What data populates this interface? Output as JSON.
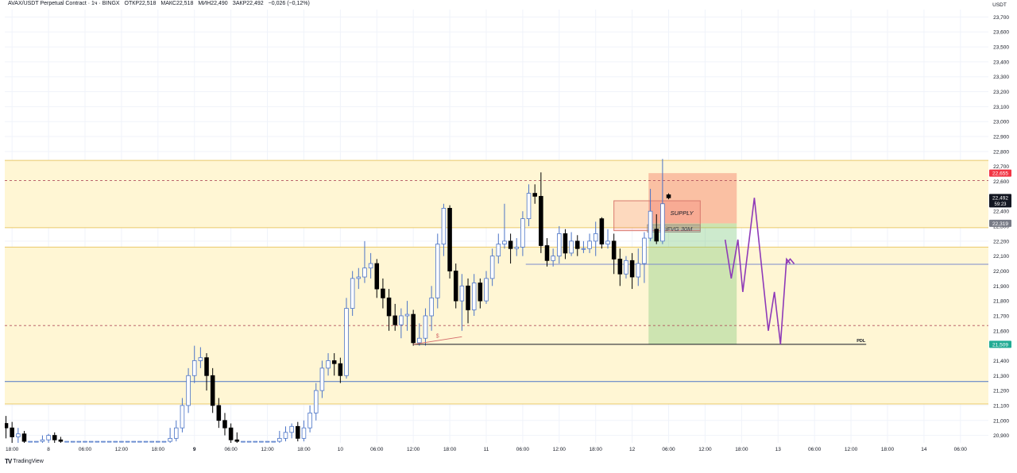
{
  "header": {
    "symbol": "AVAX/USDT Perpetual Contract · 1ч · BINGX",
    "open_label": "ОТКР",
    "open": "22,518",
    "high_label": "МАКС",
    "high": "22,518",
    "low_label": "МИН",
    "low": "22,490",
    "close_label": "ЗАКР",
    "close": "22,492",
    "change": "−0,026 (−0,12%)"
  },
  "footer": {
    "brand": "TradingView",
    "logo_icon": "tradingview-logo-icon"
  },
  "chart_data": {
    "type": "candlestick",
    "currency": "USDT",
    "ylim": [
      20.85,
      23.75
    ],
    "y_ticks": [
      "23,700",
      "23,600",
      "23,500",
      "23,400",
      "23,300",
      "23,200",
      "23,100",
      "23,000",
      "22,900",
      "22,800",
      "22,700",
      "22,600",
      "22,500",
      "22,400",
      "22,300",
      "22,200",
      "22,100",
      "22,000",
      "21,900",
      "21,800",
      "21,700",
      "21,600",
      "21,500",
      "21,400",
      "21,300",
      "21,200",
      "21,100",
      "21,000",
      "20,900"
    ],
    "y_tick_values": [
      23.7,
      23.6,
      23.5,
      23.4,
      23.3,
      23.2,
      23.1,
      23.0,
      22.9,
      22.8,
      22.7,
      22.6,
      22.5,
      22.4,
      22.3,
      22.2,
      22.1,
      22.0,
      21.9,
      21.8,
      21.7,
      21.6,
      21.5,
      21.4,
      21.3,
      21.2,
      21.1,
      21.0,
      20.9
    ],
    "x_tick_labels": [
      "18:00",
      "8",
      "06:00",
      "12:00",
      "18:00",
      "9",
      "06:00",
      "12:00",
      "18:00",
      "10",
      "06:00",
      "12:00",
      "18:00",
      "11",
      "06:00",
      "12:00",
      "18:00",
      "12",
      "06:00",
      "12:00",
      "18:00",
      "13",
      "06:00",
      "12:00",
      "18:00",
      "14",
      "06:00"
    ],
    "x_tick_bold": [
      "9"
    ],
    "x_tick_hours": [
      0,
      6,
      12,
      18,
      24,
      30,
      36,
      42,
      48,
      54,
      60,
      66,
      72,
      78,
      84,
      90,
      96,
      102,
      108,
      114,
      120,
      126,
      132,
      138,
      144,
      150,
      156
    ],
    "x_range_hours": [
      -1.2,
      160.6
    ],
    "candles": [
      [
        -1.0,
        20.98,
        20.95,
        21.03,
        20.88
      ],
      [
        0.0,
        20.95,
        20.89,
        20.99,
        20.85
      ],
      [
        1.0,
        20.89,
        20.91,
        20.95,
        20.85
      ],
      [
        2.0,
        20.91,
        20.86,
        20.93,
        20.84
      ],
      [
        3.0,
        20.86,
        20.86,
        20.86,
        20.86
      ],
      [
        4.0,
        20.86,
        20.86,
        20.86,
        20.86
      ],
      [
        5.0,
        20.86,
        20.87,
        20.9,
        20.84
      ],
      [
        6.0,
        20.87,
        20.9,
        20.91,
        20.85
      ],
      [
        7.0,
        20.9,
        20.87,
        20.92,
        20.85
      ],
      [
        8.0,
        20.87,
        20.86,
        20.89,
        20.85
      ],
      [
        9.0,
        20.86,
        20.86,
        20.86,
        20.86
      ],
      [
        10.0,
        20.86,
        20.86,
        20.86,
        20.86
      ],
      [
        11.0,
        20.86,
        20.86,
        20.86,
        20.86
      ],
      [
        12.0,
        20.86,
        20.86,
        20.86,
        20.86
      ],
      [
        13.0,
        20.86,
        20.86,
        20.86,
        20.86
      ],
      [
        14.0,
        20.86,
        20.86,
        20.86,
        20.86
      ],
      [
        15.0,
        20.86,
        20.86,
        20.86,
        20.86
      ],
      [
        16.0,
        20.86,
        20.86,
        20.86,
        20.86
      ],
      [
        17.0,
        20.86,
        20.86,
        20.86,
        20.86
      ],
      [
        18.0,
        20.86,
        20.86,
        20.86,
        20.86
      ],
      [
        19.0,
        20.86,
        20.86,
        20.86,
        20.86
      ],
      [
        20.0,
        20.86,
        20.86,
        20.86,
        20.86
      ],
      [
        21.0,
        20.86,
        20.86,
        20.86,
        20.86
      ],
      [
        22.0,
        20.86,
        20.86,
        20.86,
        20.86
      ],
      [
        23.0,
        20.86,
        20.86,
        20.86,
        20.86
      ],
      [
        24.0,
        20.86,
        20.86,
        20.86,
        20.86
      ],
      [
        25.0,
        20.86,
        20.86,
        20.86,
        20.86
      ],
      [
        26.0,
        20.86,
        20.88,
        20.95,
        20.84
      ],
      [
        27.0,
        20.88,
        20.95,
        21.0,
        20.86
      ],
      [
        28.0,
        20.95,
        21.1,
        21.15,
        20.92
      ],
      [
        29.0,
        21.1,
        21.3,
        21.35,
        21.05
      ],
      [
        30.0,
        21.3,
        21.4,
        21.5,
        21.25
      ],
      [
        31.0,
        21.4,
        21.42,
        21.49,
        21.35
      ],
      [
        32.0,
        21.42,
        21.3,
        21.45,
        21.2
      ],
      [
        33.0,
        21.3,
        21.1,
        21.35,
        21.05
      ],
      [
        34.0,
        21.1,
        21.0,
        21.15,
        20.95
      ],
      [
        35.0,
        21.0,
        20.95,
        21.05,
        20.9
      ],
      [
        36.0,
        20.95,
        20.87,
        20.98,
        20.85
      ],
      [
        37.0,
        20.87,
        20.86,
        20.92,
        20.85
      ],
      [
        38.0,
        20.86,
        20.86,
        20.86,
        20.86
      ],
      [
        39.0,
        20.86,
        20.86,
        20.86,
        20.86
      ],
      [
        40.0,
        20.86,
        20.86,
        20.86,
        20.86
      ],
      [
        41.0,
        20.86,
        20.86,
        20.86,
        20.86
      ],
      [
        42.0,
        20.86,
        20.86,
        20.86,
        20.86
      ],
      [
        43.0,
        20.86,
        20.86,
        20.86,
        20.86
      ],
      [
        44.0,
        20.86,
        20.88,
        20.93,
        20.85
      ],
      [
        45.0,
        20.88,
        20.92,
        20.96,
        20.86
      ],
      [
        46.0,
        20.92,
        20.96,
        20.98,
        20.88
      ],
      [
        47.0,
        20.96,
        20.88,
        20.99,
        20.86
      ],
      [
        48.0,
        20.88,
        20.95,
        21.0,
        20.86
      ],
      [
        49.0,
        20.95,
        21.05,
        21.1,
        20.92
      ],
      [
        50.0,
        21.05,
        21.2,
        21.25,
        21.0
      ],
      [
        51.0,
        21.2,
        21.35,
        21.4,
        21.15
      ],
      [
        52.0,
        21.35,
        21.4,
        21.45,
        21.3
      ],
      [
        53.0,
        21.4,
        21.38,
        21.45,
        21.3
      ],
      [
        54.0,
        21.38,
        21.3,
        21.42,
        21.25
      ],
      [
        55.0,
        21.3,
        21.75,
        21.82,
        21.28
      ],
      [
        56.0,
        21.75,
        21.95,
        22.0,
        21.7
      ],
      [
        57.0,
        21.95,
        21.96,
        22.02,
        21.88
      ],
      [
        58.0,
        21.96,
        22.02,
        22.2,
        21.92
      ],
      [
        59.0,
        22.02,
        22.05,
        22.12,
        21.95
      ],
      [
        60.0,
        22.05,
        21.88,
        22.08,
        21.82
      ],
      [
        61.0,
        21.88,
        21.82,
        21.95,
        21.75
      ],
      [
        62.0,
        21.82,
        21.7,
        21.88,
        21.6
      ],
      [
        63.0,
        21.7,
        21.64,
        21.78,
        21.6
      ],
      [
        64.0,
        21.64,
        21.7,
        21.75,
        21.55
      ],
      [
        65.0,
        21.7,
        21.71,
        21.8,
        21.6
      ],
      [
        66.0,
        21.71,
        21.52,
        21.74,
        21.5
      ],
      [
        67.0,
        21.52,
        21.55,
        21.65,
        21.5
      ],
      [
        68.0,
        21.55,
        21.7,
        21.75,
        21.5
      ],
      [
        69.0,
        21.7,
        21.82,
        21.9,
        21.6
      ],
      [
        70.0,
        21.82,
        22.18,
        22.25,
        21.75
      ],
      [
        71.0,
        22.18,
        22.42,
        22.45,
        22.1
      ],
      [
        72.0,
        22.42,
        22.0,
        22.44,
        21.95
      ],
      [
        73.0,
        22.0,
        21.8,
        22.05,
        21.75
      ],
      [
        74.0,
        21.8,
        21.9,
        21.98,
        21.6
      ],
      [
        75.0,
        21.9,
        21.74,
        21.95,
        21.65
      ],
      [
        76.0,
        21.74,
        21.92,
        21.98,
        21.7
      ],
      [
        77.0,
        21.92,
        21.8,
        21.95,
        21.75
      ],
      [
        78.0,
        21.8,
        21.95,
        22.0,
        21.78
      ],
      [
        79.0,
        21.95,
        22.1,
        22.15,
        21.9
      ],
      [
        80.0,
        22.1,
        22.18,
        22.25,
        22.05
      ],
      [
        81.0,
        22.18,
        22.2,
        22.45,
        22.15
      ],
      [
        82.0,
        22.2,
        22.15,
        22.25,
        22.05
      ],
      [
        83.0,
        22.15,
        22.16,
        22.22,
        22.1
      ],
      [
        84.0,
        22.16,
        22.35,
        22.4,
        22.1
      ],
      [
        85.0,
        22.35,
        22.52,
        22.58,
        22.3
      ],
      [
        86.0,
        22.52,
        22.5,
        22.58,
        22.45
      ],
      [
        87.0,
        22.5,
        22.17,
        22.66,
        22.12
      ],
      [
        88.0,
        22.17,
        22.07,
        22.22,
        22.03
      ],
      [
        89.0,
        22.07,
        22.1,
        22.15,
        22.03
      ],
      [
        90.0,
        22.1,
        22.25,
        22.3,
        22.05
      ],
      [
        91.0,
        22.25,
        22.12,
        22.28,
        22.08
      ],
      [
        92.0,
        22.12,
        22.2,
        22.26,
        22.1
      ],
      [
        93.0,
        22.2,
        22.15,
        22.24,
        22.1
      ],
      [
        94.0,
        22.15,
        22.15,
        22.2,
        22.12
      ],
      [
        95.0,
        22.15,
        22.2,
        22.25,
        22.12
      ],
      [
        96.0,
        22.2,
        22.25,
        22.33,
        22.1
      ],
      [
        97.0,
        22.35,
        22.18,
        22.36,
        22.15
      ],
      [
        98.0,
        22.18,
        22.2,
        22.28,
        22.15
      ],
      [
        99.0,
        22.2,
        22.08,
        22.25,
        21.98
      ],
      [
        100.0,
        22.08,
        21.98,
        22.15,
        21.9
      ],
      [
        101.0,
        21.98,
        22.07,
        22.1,
        21.95
      ],
      [
        102.0,
        22.07,
        21.96,
        22.12,
        21.88
      ],
      [
        103.0,
        21.96,
        22.05,
        22.15,
        21.9
      ],
      [
        104.0,
        22.05,
        22.22,
        22.26,
        21.92
      ],
      [
        105.0,
        22.22,
        22.4,
        22.55,
        22.2
      ],
      [
        106.0,
        22.28,
        22.2,
        22.38,
        22.18
      ],
      [
        107.0,
        22.2,
        22.45,
        22.75,
        22.18
      ],
      [
        108.0,
        22.51,
        22.49,
        22.52,
        22.48
      ]
    ],
    "zones": [
      {
        "y1": 22.29,
        "y2": 22.74,
        "color": "#fff6d4",
        "border": "#e9c96a"
      },
      {
        "y1": 21.11,
        "y2": 22.16,
        "color": "#fff6d4",
        "border": "#e9c96a"
      }
    ],
    "dashed_levels": [
      {
        "y": 22.605,
        "color": "#b1505c"
      },
      {
        "y": 21.635,
        "color": "#b1505c"
      }
    ],
    "solid_levels": [
      {
        "y": 21.26,
        "color": "#4b74c7"
      },
      {
        "y": 22.045,
        "color": "#7b8bcd",
        "from_h": 84.5
      }
    ],
    "annotations": {
      "supply_label": "SUPPLY",
      "supply_box": {
        "x1_h": 99.0,
        "x2_h": 113.2,
        "y1": 22.27,
        "y2": 22.47
      },
      "ifvg_label": "iFVG 30M",
      "ifvg_box": {
        "x1_h": 104.5,
        "x2_h": 113.2,
        "y1": 22.26,
        "y2": 22.31
      },
      "stop_box": {
        "x1_h": 104.7,
        "x2_h": 119.2,
        "y1": 22.319,
        "y2": 22.655
      },
      "target_box": {
        "x1_h": 104.7,
        "x2_h": 119.2,
        "y1": 21.509,
        "y2": 22.319
      },
      "pdl_label": "PDL",
      "pdl_line": {
        "x1_h": 66.0,
        "x2_h": 140.5,
        "y": 21.509
      },
      "sweep_label": "$",
      "sweep_line": {
        "x1_h": 66.0,
        "x2_h": 74.0,
        "y1": 21.509,
        "y2": 21.56
      },
      "projection_path": [
        [
          117.3,
          22.21
        ],
        [
          118.3,
          21.95
        ],
        [
          119.4,
          22.21
        ],
        [
          120.2,
          21.86
        ],
        [
          122.1,
          22.49
        ],
        [
          124.4,
          21.6
        ],
        [
          125.4,
          21.86
        ],
        [
          126.4,
          21.51
        ],
        [
          127.4,
          22.08
        ],
        [
          128.0,
          22.05
        ]
      ],
      "projection_arrow_tip": [
        128.0,
        22.08
      ]
    },
    "price_tags": [
      {
        "value": "22,655",
        "y": 22.655,
        "bg": "#f23645",
        "fg": "#ffffff"
      },
      {
        "value": "22,492",
        "sub": "59:23",
        "y": 22.492,
        "bg": "#131722",
        "fg": "#ffffff"
      },
      {
        "value": "22,319",
        "y": 22.319,
        "bg": "#787b86",
        "fg": "#ffffff"
      },
      {
        "value": "21,509",
        "y": 21.509,
        "bg": "#22ab94",
        "fg": "#ffffff"
      }
    ],
    "colors": {
      "up": "#ffffff",
      "up_border": "#4b74c7",
      "down": "#000000",
      "projection": "#8e3ab8"
    }
  }
}
